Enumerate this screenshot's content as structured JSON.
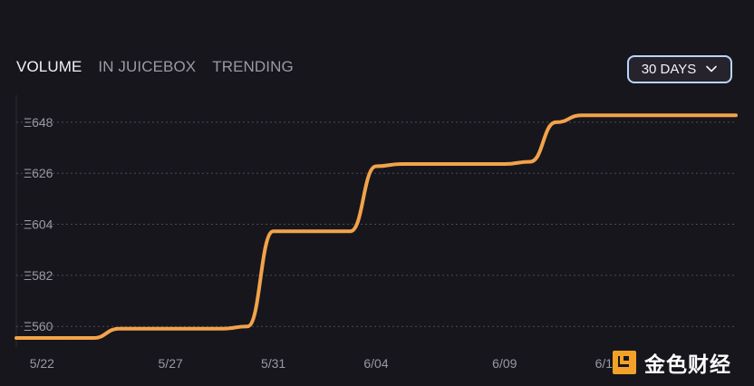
{
  "tabs": [
    {
      "label": "VOLUME",
      "active": true
    },
    {
      "label": "IN JUICEBOX",
      "active": false
    },
    {
      "label": "TRENDING",
      "active": false
    }
  ],
  "range_selector": {
    "label": "30 DAYS",
    "icon": "chevron-down-icon"
  },
  "watermark": {
    "text": "金色财经",
    "icon": "logo-mark-icon"
  },
  "colors": {
    "background": "#18161d",
    "line": "#f2a34a",
    "grid": "#77737f",
    "axis_text": "#9a98a3",
    "active_tab": "#f2f2f5",
    "inactive_tab": "#9b9aa3",
    "button_border": "#b8d6ff"
  },
  "chart_data": {
    "type": "line",
    "title": "",
    "xlabel": "",
    "ylabel": "",
    "y_unit_prefix": "Ξ",
    "ylim": [
      555,
      655
    ],
    "grid": true,
    "x_ticks": [
      "5/22",
      "5/27",
      "5/31",
      "6/04",
      "6/09",
      "6/13"
    ],
    "y_ticks": [
      560,
      582,
      604,
      626,
      648
    ],
    "series": [
      {
        "name": "",
        "points": [
          {
            "x": "5/21",
            "y": 555
          },
          {
            "x": "5/22",
            "y": 555
          },
          {
            "x": "5/23",
            "y": 555
          },
          {
            "x": "5/24",
            "y": 555
          },
          {
            "x": "5/25",
            "y": 559
          },
          {
            "x": "5/26",
            "y": 559
          },
          {
            "x": "5/27",
            "y": 559
          },
          {
            "x": "5/28",
            "y": 559
          },
          {
            "x": "5/29",
            "y": 559
          },
          {
            "x": "5/30",
            "y": 560
          },
          {
            "x": "5/31",
            "y": 601
          },
          {
            "x": "6/01",
            "y": 601
          },
          {
            "x": "6/02",
            "y": 601
          },
          {
            "x": "6/03",
            "y": 601
          },
          {
            "x": "6/04",
            "y": 629
          },
          {
            "x": "6/05",
            "y": 630
          },
          {
            "x": "6/06",
            "y": 630
          },
          {
            "x": "6/07",
            "y": 630
          },
          {
            "x": "6/08",
            "y": 630
          },
          {
            "x": "6/09",
            "y": 630
          },
          {
            "x": "6/10",
            "y": 631
          },
          {
            "x": "6/11",
            "y": 648
          },
          {
            "x": "6/12",
            "y": 651
          },
          {
            "x": "6/13",
            "y": 651
          },
          {
            "x": "6/14",
            "y": 651
          },
          {
            "x": "6/15",
            "y": 651
          },
          {
            "x": "6/16",
            "y": 651
          },
          {
            "x": "6/17",
            "y": 651
          },
          {
            "x": "6/18",
            "y": 651
          }
        ]
      }
    ]
  }
}
